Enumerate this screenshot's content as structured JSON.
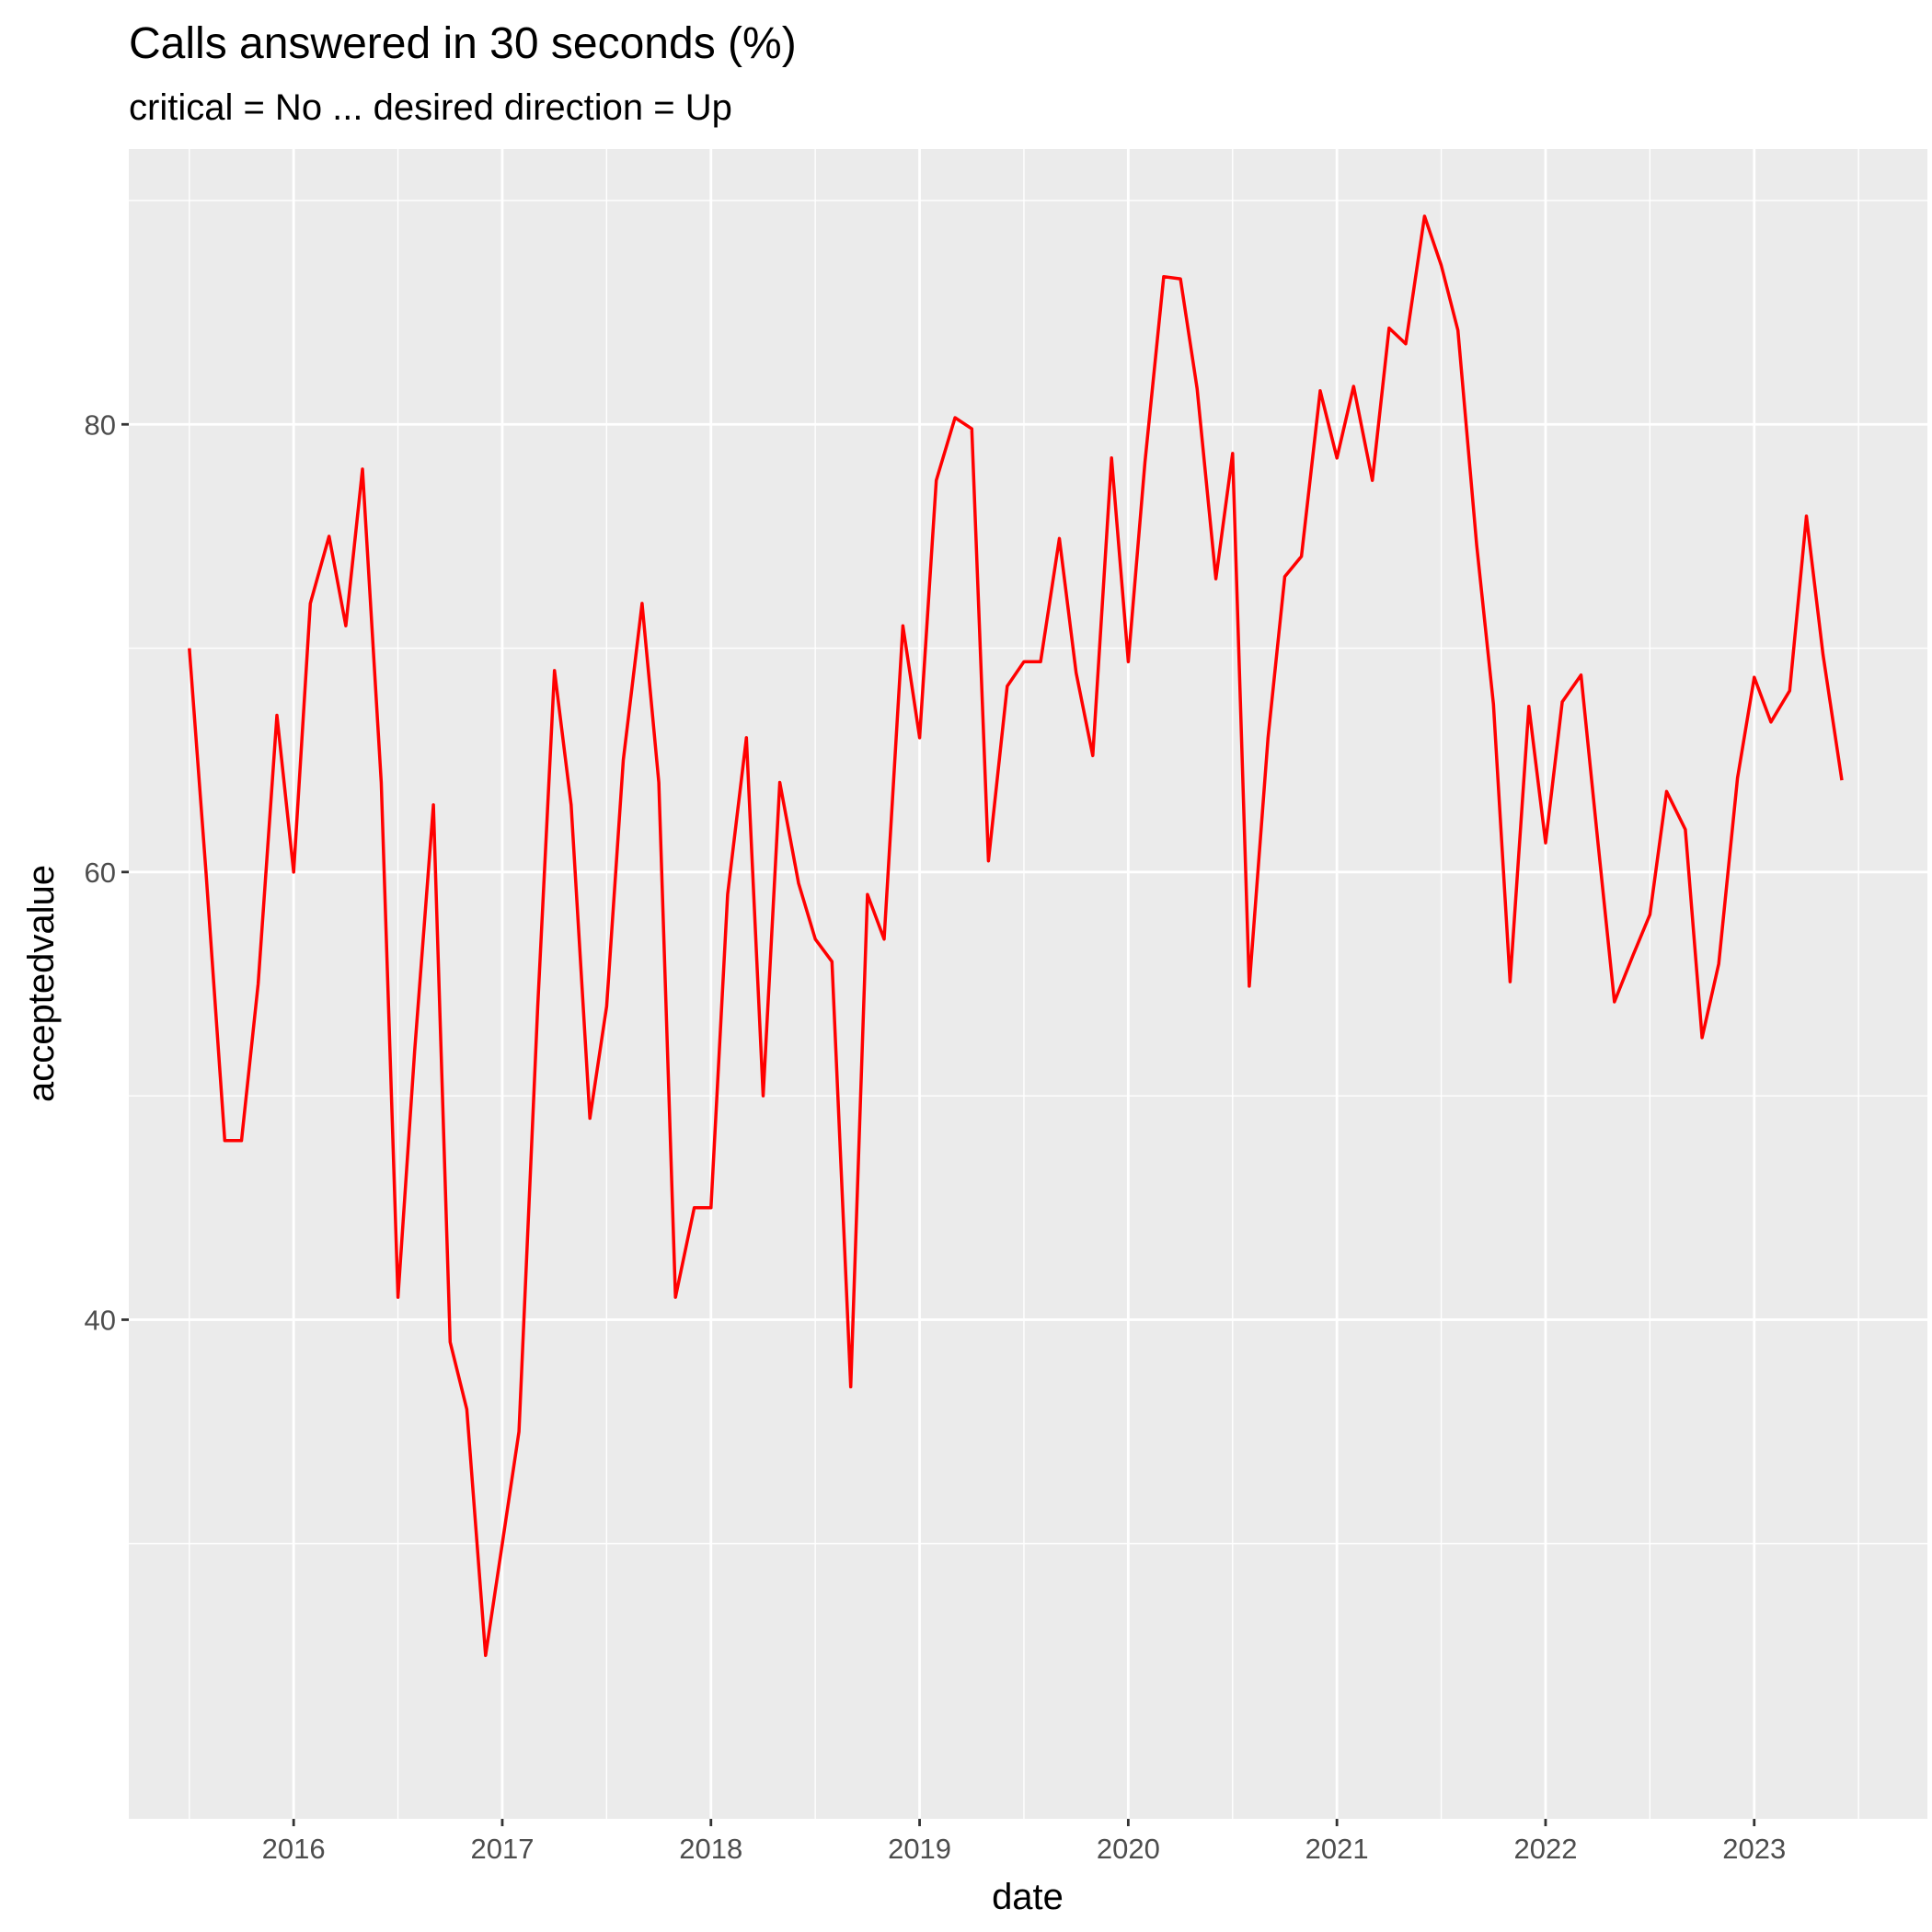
{
  "chart_data": {
    "type": "line",
    "title": "Calls answered in 30 seconds (%)",
    "subtitle": "critical = No ... desired direction = Up",
    "xlabel": "date",
    "ylabel": "acceptedvalue",
    "series_color": "#ff0000",
    "panel_color": "#ebebeb",
    "grid": true,
    "x_ticks": [
      "2016",
      "2017",
      "2018",
      "2019",
      "2020",
      "2021",
      "2022",
      "2023"
    ],
    "x_tick_values": [
      2016,
      2017,
      2018,
      2019,
      2020,
      2021,
      2022,
      2023
    ],
    "y_ticks": [
      "40",
      "60",
      "80"
    ],
    "y_tick_values": [
      40,
      60,
      80
    ],
    "xlim": [
      2015.21,
      2023.83
    ],
    "ylim": [
      17.7,
      92.3
    ],
    "x": [
      2015.5,
      2015.58,
      2015.67,
      2015.75,
      2015.83,
      2015.92,
      2016.0,
      2016.08,
      2016.17,
      2016.25,
      2016.33,
      2016.42,
      2016.5,
      2016.58,
      2016.67,
      2016.75,
      2016.83,
      2016.92,
      2017.0,
      2017.08,
      2017.17,
      2017.25,
      2017.33,
      2017.42,
      2017.5,
      2017.58,
      2017.67,
      2017.75,
      2017.83,
      2017.92,
      2018.0,
      2018.08,
      2018.17,
      2018.25,
      2018.33,
      2018.42,
      2018.5,
      2018.58,
      2018.67,
      2018.75,
      2018.83,
      2018.92,
      2019.0,
      2019.08,
      2019.17,
      2019.25,
      2019.33,
      2019.42,
      2019.5,
      2019.58,
      2019.67,
      2019.75,
      2019.83,
      2019.92,
      2020.0,
      2020.08,
      2020.17,
      2020.25,
      2020.33,
      2020.42,
      2020.5,
      2020.58,
      2020.67,
      2020.75,
      2020.83,
      2020.92,
      2021.0,
      2021.08,
      2021.17,
      2021.25,
      2021.33,
      2021.42,
      2021.5,
      2021.58,
      2021.67,
      2021.75,
      2021.83,
      2021.92,
      2022.0,
      2022.08,
      2022.17,
      2022.25,
      2022.33,
      2022.42,
      2022.5,
      2022.58,
      2022.67,
      2022.75,
      2022.83,
      2022.92,
      2023.0,
      2023.08,
      2023.17,
      2023.25,
      2023.33,
      2023.42
    ],
    "values": [
      70,
      60,
      48,
      48,
      55,
      67,
      60,
      72,
      75,
      71,
      78,
      64,
      41,
      52,
      63,
      39,
      36,
      25,
      30,
      35,
      54,
      69,
      63,
      49,
      54,
      65,
      72,
      64,
      41,
      45,
      45,
      59,
      66,
      50,
      64,
      59.5,
      57,
      56,
      37,
      59,
      57,
      71,
      66,
      77.5,
      80.3,
      79.8,
      60.5,
      68.3,
      69.4,
      69.4,
      74.9,
      68.9,
      65.2,
      78.5,
      69.4,
      78.3,
      86.6,
      86.5,
      81.6,
      73.1,
      78.7,
      54.9,
      66,
      73.2,
      74.1,
      81.5,
      78.5,
      81.7,
      77.5,
      84.3,
      83.6,
      89.3,
      87.1,
      84.2,
      74.6,
      67.5,
      55.1,
      67.4,
      61.3,
      67.6,
      68.8,
      61.4,
      54.2,
      56.3,
      58.1,
      63.6,
      61.9,
      52.6,
      55.9,
      64.2,
      68.7,
      66.7,
      68.1,
      75.9,
      69.7,
      64.1
    ]
  }
}
